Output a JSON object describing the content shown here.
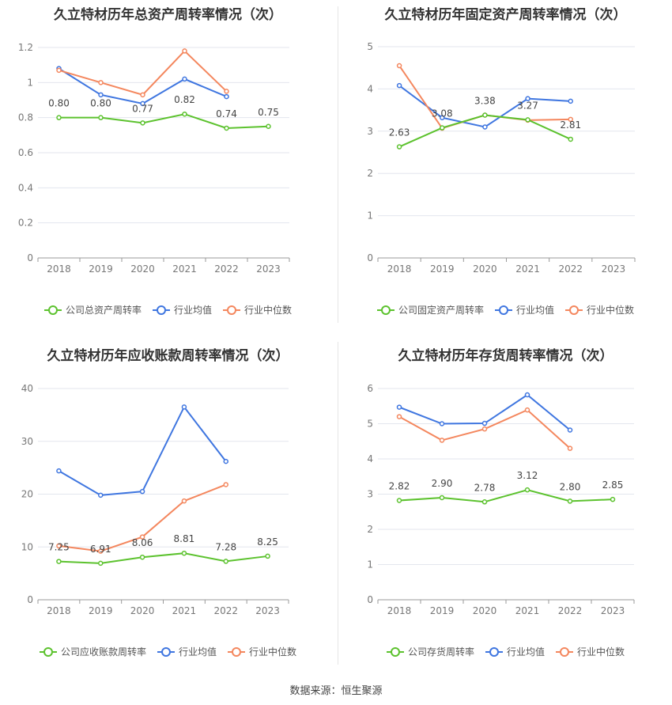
{
  "colors": {
    "company": "#5cc22e",
    "industry_avg": "#3f76e0",
    "industry_median": "#f4875e"
  },
  "source": "数据来源：恒生聚源",
  "chart_data": [
    {
      "type": "line",
      "title": "久立特材历年总资产周转率情况（次）",
      "categories": [
        "2018",
        "2019",
        "2020",
        "2021",
        "2022",
        "2023"
      ],
      "ylim": [
        0,
        1.2
      ],
      "yticks": [
        "0",
        "0.2",
        "0.4",
        "0.6",
        "0.8",
        "1",
        "1.2"
      ],
      "legend_position": "bottom",
      "series": [
        {
          "name": "公司总资产周转率",
          "color": "#5cc22e",
          "values": [
            0.8,
            0.8,
            0.77,
            0.82,
            0.74,
            0.75
          ],
          "labels": [
            "0.80",
            "0.80",
            "0.77",
            "0.82",
            "0.74",
            "0.75"
          ]
        },
        {
          "name": "行业均值",
          "color": "#3f76e0",
          "values": [
            1.08,
            0.93,
            0.88,
            1.02,
            0.92,
            null
          ]
        },
        {
          "name": "行业中位数",
          "color": "#f4875e",
          "values": [
            1.07,
            1.0,
            0.93,
            1.18,
            0.95,
            null
          ]
        }
      ]
    },
    {
      "type": "line",
      "title": "久立特材历年固定资产周转率情况（次）",
      "categories": [
        "2018",
        "2019",
        "2020",
        "2021",
        "2022",
        "2023"
      ],
      "ylim": [
        0,
        5
      ],
      "yticks": [
        "0",
        "1",
        "2",
        "3",
        "4",
        "5"
      ],
      "legend_position": "bottom",
      "series": [
        {
          "name": "公司固定资产周转率",
          "color": "#5cc22e",
          "values": [
            2.63,
            3.08,
            3.38,
            3.27,
            2.81,
            null
          ],
          "labels": [
            "2.63",
            "3.08",
            "3.38",
            "3.27",
            "2.81",
            null
          ]
        },
        {
          "name": "行业均值",
          "color": "#3f76e0",
          "values": [
            4.08,
            3.32,
            3.1,
            3.77,
            3.71,
            null
          ]
        },
        {
          "name": "行业中位数",
          "color": "#f4875e",
          "values": [
            4.55,
            3.07,
            3.38,
            3.26,
            3.28,
            null
          ]
        }
      ]
    },
    {
      "type": "line",
      "title": "久立特材历年应收账款周转率情况（次）",
      "categories": [
        "2018",
        "2019",
        "2020",
        "2021",
        "2022",
        "2023"
      ],
      "ylim": [
        0,
        40
      ],
      "yticks": [
        "0",
        "10",
        "20",
        "30",
        "40"
      ],
      "legend_position": "bottom",
      "series": [
        {
          "name": "公司应收账款周转率",
          "color": "#5cc22e",
          "values": [
            7.25,
            6.91,
            8.06,
            8.81,
            7.28,
            8.25
          ],
          "labels": [
            "7.25",
            "6.91",
            "8.06",
            "8.81",
            "7.28",
            "8.25"
          ]
        },
        {
          "name": "行业均值",
          "color": "#3f76e0",
          "values": [
            24.4,
            19.8,
            20.5,
            36.5,
            26.2,
            null
          ]
        },
        {
          "name": "行业中位数",
          "color": "#f4875e",
          "values": [
            10.2,
            9.2,
            11.9,
            18.7,
            21.8,
            null
          ]
        }
      ]
    },
    {
      "type": "line",
      "title": "久立特材历年存货周转率情况（次）",
      "categories": [
        "2018",
        "2019",
        "2020",
        "2021",
        "2022",
        "2023"
      ],
      "ylim": [
        0,
        6
      ],
      "yticks": [
        "0",
        "1",
        "2",
        "3",
        "4",
        "5",
        "6"
      ],
      "legend_position": "bottom",
      "series": [
        {
          "name": "公司存货周转率",
          "color": "#5cc22e",
          "values": [
            2.82,
            2.9,
            2.78,
            3.12,
            2.8,
            2.85
          ],
          "labels": [
            "2.82",
            "2.90",
            "2.78",
            "3.12",
            "2.80",
            "2.85"
          ]
        },
        {
          "name": "行业均值",
          "color": "#3f76e0",
          "values": [
            5.47,
            5.0,
            5.01,
            5.82,
            4.82,
            null
          ]
        },
        {
          "name": "行业中位数",
          "color": "#f4875e",
          "values": [
            5.2,
            4.53,
            4.85,
            5.39,
            4.3,
            null
          ]
        }
      ]
    }
  ]
}
